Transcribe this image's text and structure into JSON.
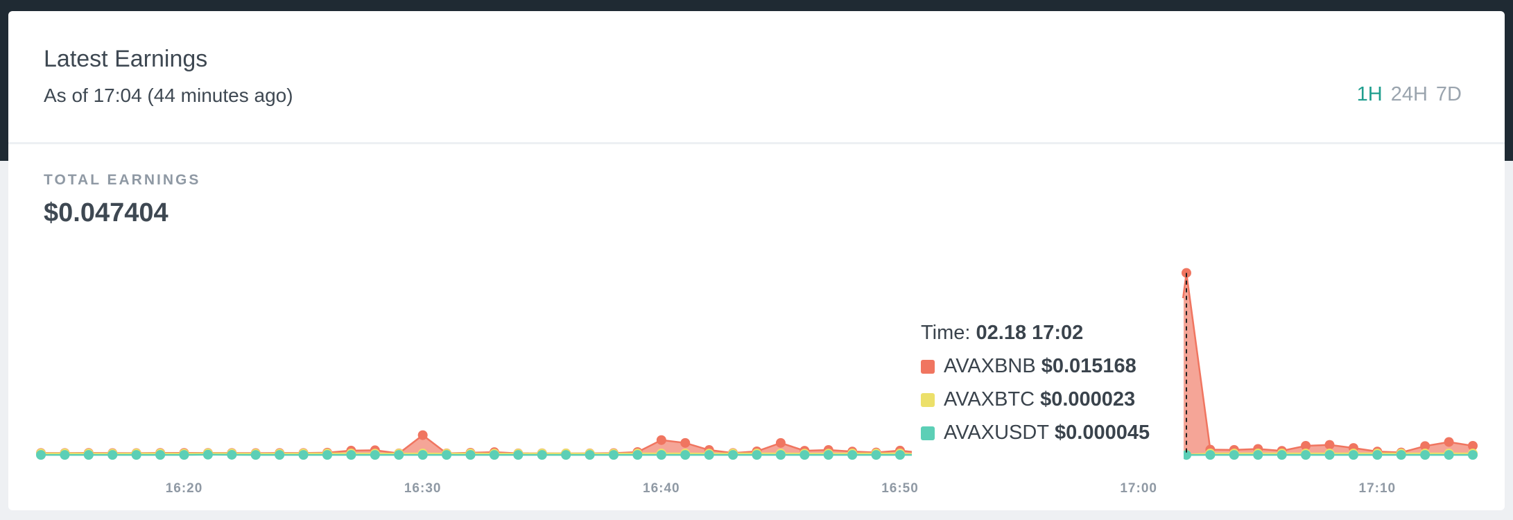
{
  "header": {
    "title": "Latest Earnings",
    "subtitle": "As of 17:04 (44 minutes ago)",
    "ranges": [
      {
        "label": "1H",
        "active": true
      },
      {
        "label": "24H",
        "active": false
      },
      {
        "label": "7D",
        "active": false
      }
    ]
  },
  "total": {
    "label": "TOTAL EARNINGS",
    "value": "$0.047404"
  },
  "tooltip": {
    "time_label": "Time:",
    "time_value": "02.18 17:02",
    "rows": [
      {
        "name": "AVAXBNB",
        "value": "$0.015168"
      },
      {
        "name": "AVAXBTC",
        "value": "$0.000023"
      },
      {
        "name": "AVAXUSDT",
        "value": "$0.000045"
      }
    ]
  },
  "colors": {
    "avaxbnb": "#f07560",
    "avaxbtc": "#ece06a",
    "avaxusdt": "#5ccfb6",
    "active_range": "#1f9e8e"
  },
  "chart_data": {
    "type": "area",
    "stacked": true,
    "x": [
      "16:14",
      "16:15",
      "16:16",
      "16:17",
      "16:18",
      "16:19",
      "16:20",
      "16:21",
      "16:22",
      "16:23",
      "16:24",
      "16:25",
      "16:26",
      "16:27",
      "16:28",
      "16:29",
      "16:30",
      "16:31",
      "16:32",
      "16:33",
      "16:34",
      "16:35",
      "16:36",
      "16:37",
      "16:38",
      "16:39",
      "16:40",
      "16:41",
      "16:42",
      "16:43",
      "16:44",
      "16:45",
      "16:46",
      "16:47",
      "16:48",
      "16:49",
      "16:50",
      "16:51",
      "16:52",
      "16:53",
      "16:54",
      "16:55",
      "16:56",
      "16:57",
      "16:58",
      "16:59",
      "17:00",
      "17:01",
      "17:02",
      "17:03",
      "17:04",
      "17:05",
      "17:06",
      "17:07",
      "17:08",
      "17:09",
      "17:10",
      "17:11",
      "17:12",
      "17:13",
      "17:14"
    ],
    "xticks": [
      "16:20",
      "16:30",
      "16:40",
      "16:50",
      "17:00",
      "17:10"
    ],
    "ylim": [
      0,
      0.0155
    ],
    "grid": false,
    "highlight_x": "17:02",
    "series": [
      {
        "name": "AVAXUSDT",
        "values": [
          5e-05,
          5e-05,
          5e-05,
          5e-05,
          5e-05,
          5e-05,
          5e-05,
          7e-05,
          6e-05,
          5e-05,
          5e-05,
          5e-05,
          5e-05,
          5e-05,
          5e-05,
          5e-05,
          5e-05,
          5e-05,
          5e-05,
          5e-05,
          5e-05,
          5e-05,
          5e-05,
          5e-05,
          5e-05,
          5e-05,
          5e-05,
          5e-05,
          5e-05,
          5e-05,
          5e-05,
          5e-05,
          5e-05,
          5e-05,
          5e-05,
          5e-05,
          5e-05,
          5e-05,
          5e-05,
          5e-05,
          5e-05,
          5e-05,
          5e-05,
          5e-05,
          5e-05,
          5e-05,
          5e-05,
          5e-05,
          4.5e-05,
          5e-05,
          5e-05,
          5e-05,
          5e-05,
          5e-05,
          5e-05,
          5e-05,
          5e-05,
          5e-05,
          5e-05,
          5e-05,
          5e-05
        ]
      },
      {
        "name": "AVAXBTC",
        "values": [
          0.00012,
          0.00013,
          0.00012,
          0.00011,
          0.00012,
          0.00012,
          0.00011,
          0.00012,
          0.00011,
          0.00011,
          0.00011,
          0.00012,
          0.00012,
          0.00012,
          0.00011,
          0.00011,
          0.00012,
          0.00011,
          0.00012,
          0.00011,
          0.00011,
          0.00012,
          0.00012,
          0.00011,
          0.00011,
          0.00012,
          0.00012,
          0.00012,
          0.00011,
          0.00012,
          0.00012,
          0.00012,
          0.00011,
          0.00011,
          0.00012,
          0.00012,
          0.00012,
          3e-05,
          3e-05,
          3e-05,
          3e-05,
          3e-05,
          3e-05,
          3e-05,
          3e-05,
          3e-05,
          3e-05,
          3e-05,
          2.3e-05,
          0.00012,
          0.00012,
          0.00012,
          0.00012,
          0.00012,
          0.00012,
          0.00012,
          0.00012,
          0.00012,
          0.00012,
          0.00012,
          0.00012
        ]
      },
      {
        "name": "AVAXBNB",
        "values": [
          4e-05,
          3e-05,
          5e-05,
          4e-05,
          3e-05,
          5e-05,
          6e-05,
          3e-05,
          4e-05,
          4e-05,
          5e-05,
          4e-05,
          7e-05,
          0.00024,
          0.00028,
          2e-05,
          0.00153,
          2e-05,
          6e-05,
          0.00012,
          2e-05,
          2e-05,
          1e-05,
          2e-05,
          4e-05,
          0.00012,
          0.00112,
          0.00088,
          0.0003,
          4e-05,
          0.00018,
          0.00088,
          0.00024,
          0.0003,
          0.00016,
          8e-05,
          0.00024,
          0.00012,
          0.00016,
          0.00012,
          0.00016,
          0.00012,
          0.00016,
          0.00012,
          6e-05,
          0.00018,
          0.00012,
          0.00014,
          0.015168,
          0.00032,
          0.0003,
          0.00038,
          0.00022,
          0.00064,
          0.00072,
          0.00046,
          0.00016,
          8e-05,
          0.00062,
          0.00096,
          0.00064
        ]
      }
    ]
  }
}
